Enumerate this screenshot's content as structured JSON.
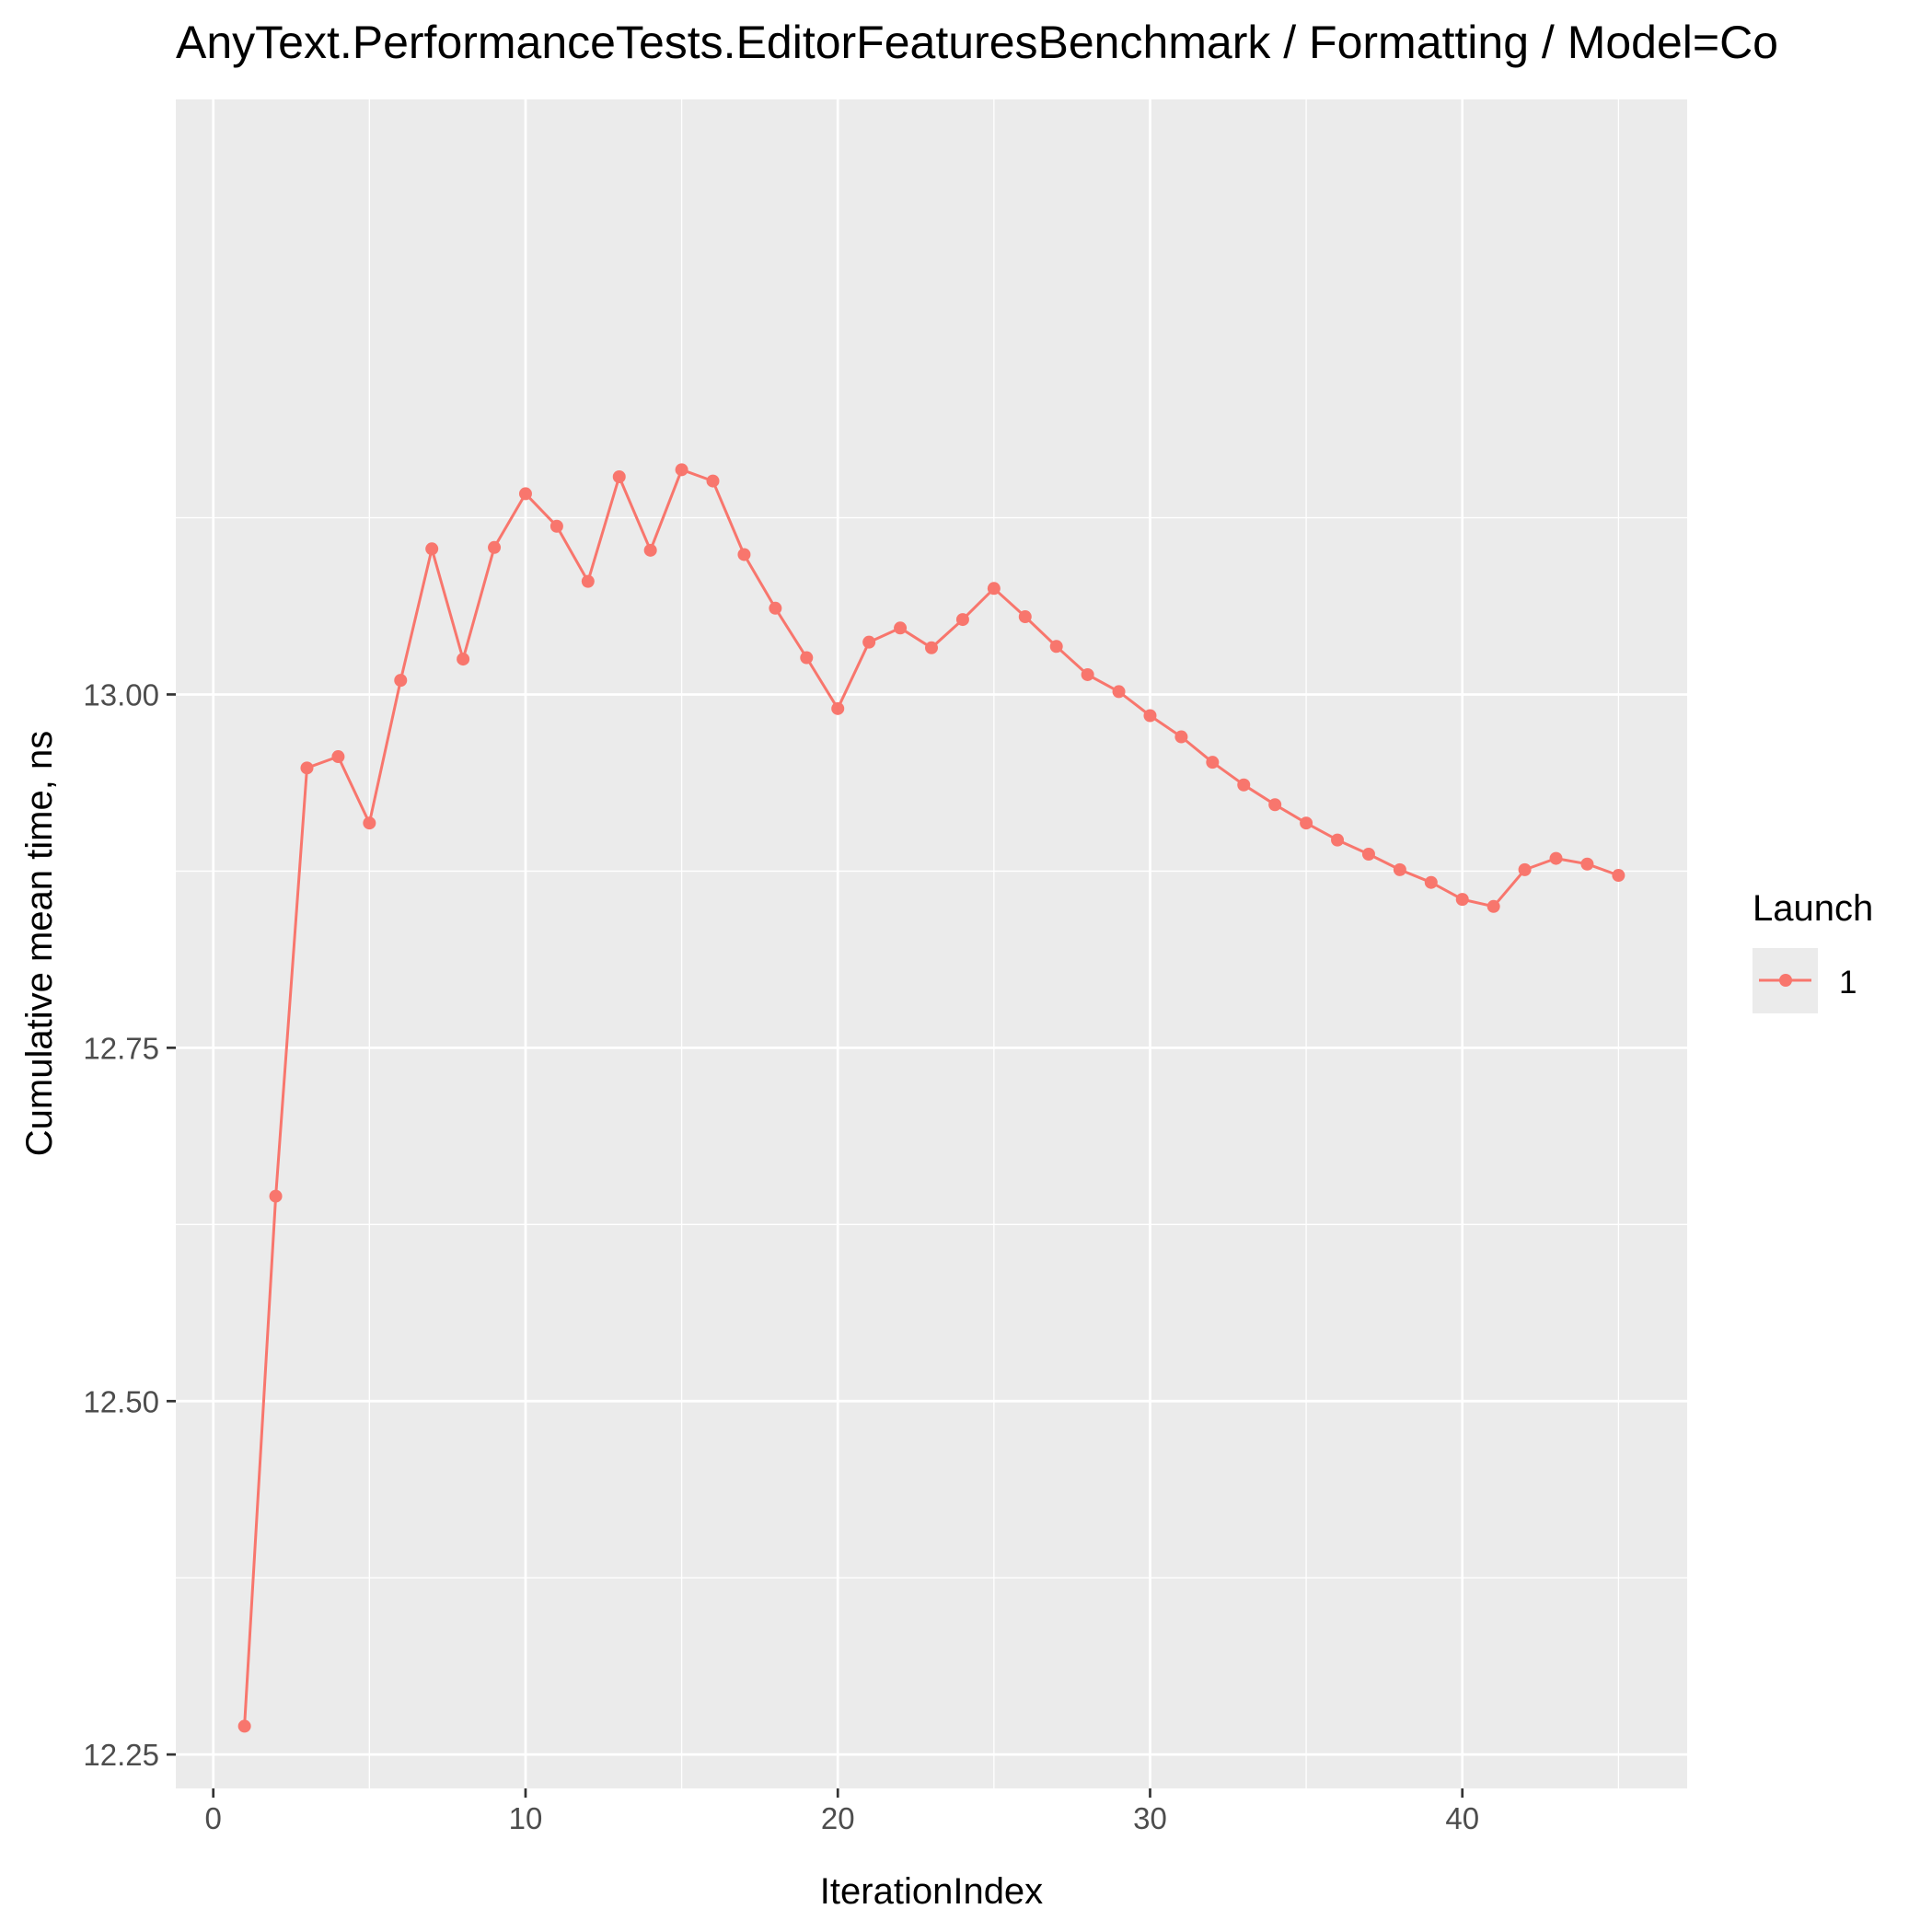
{
  "chart_data": {
    "type": "line",
    "title": "AnyText.PerformanceTests.EditorFeaturesBenchmark / Formatting / Model=Co",
    "xlabel": "IterationIndex",
    "ylabel": "Cumulative mean time, ns",
    "xlim": [
      -1.2,
      47.2
    ],
    "ylim": [
      12.226,
      13.421
    ],
    "x_ticks": [
      0,
      10,
      20,
      30,
      40
    ],
    "x_tick_labels": [
      "0",
      "10",
      "20",
      "30",
      "40"
    ],
    "x_minor_ticks": [
      5,
      15,
      25,
      35,
      45
    ],
    "y_ticks": [
      12.25,
      12.5,
      12.75,
      13.0
    ],
    "y_tick_labels": [
      "12.25",
      "12.50",
      "12.75",
      "13.00"
    ],
    "y_minor_ticks": [
      12.375,
      12.625,
      12.875,
      13.125
    ],
    "grid": true,
    "legend": {
      "title": "Launch",
      "position": "right"
    },
    "colors": {
      "panel": "#EBEBEB",
      "grid": "#FFFFFF",
      "axis_tick": "#333333",
      "tick_label": "#4D4D4D",
      "text": "#000000"
    },
    "series": [
      {
        "name": "1",
        "color": "#F8766D",
        "x": [
          1,
          2,
          3,
          4,
          5,
          6,
          7,
          8,
          9,
          10,
          11,
          12,
          13,
          14,
          15,
          16,
          17,
          18,
          19,
          20,
          21,
          22,
          23,
          24,
          25,
          26,
          27,
          28,
          29,
          30,
          31,
          32,
          33,
          34,
          35,
          36,
          37,
          38,
          39,
          40,
          41,
          42,
          43,
          44,
          45
        ],
        "y": [
          12.27,
          12.645,
          12.948,
          12.956,
          12.909,
          13.01,
          13.103,
          13.025,
          13.104,
          13.142,
          13.119,
          13.08,
          13.154,
          13.102,
          13.159,
          13.151,
          13.099,
          13.061,
          13.026,
          12.99,
          13.037,
          13.047,
          13.033,
          13.053,
          13.075,
          13.055,
          13.034,
          13.014,
          13.002,
          12.985,
          12.97,
          12.952,
          12.936,
          12.922,
          12.909,
          12.897,
          12.887,
          12.876,
          12.867,
          12.855,
          12.85,
          12.876,
          12.884,
          12.88,
          12.872
        ]
      }
    ]
  }
}
